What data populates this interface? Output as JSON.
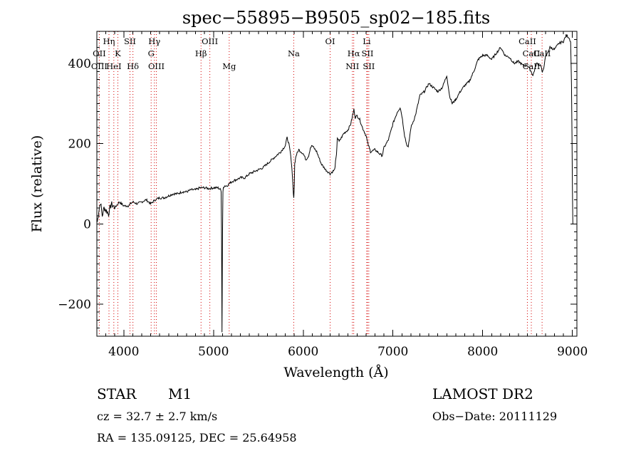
{
  "chart_data": {
    "type": "line",
    "title": "spec−55895−B9505_sp02−185.fits",
    "xlabel": "Wavelength (Å)",
    "ylabel": "Flux (relative)",
    "xlim": [
      3700,
      9050
    ],
    "ylim": [
      -280,
      480
    ],
    "x_ticks": [
      4000,
      5000,
      6000,
      7000,
      8000,
      9000
    ],
    "y_ticks": [
      -200,
      0,
      200,
      400
    ],
    "x_tick_labels": [
      "4000",
      "5000",
      "6000",
      "7000",
      "8000",
      "9000"
    ],
    "y_tick_labels": [
      "−200",
      "0",
      "200",
      "400"
    ],
    "series": [
      {
        "x": [
          3705,
          3720,
          3740,
          3760,
          3780,
          3800,
          3830,
          3860,
          3900,
          3950,
          4000,
          4050,
          4100,
          4150,
          4200,
          4250,
          4300,
          4350,
          4400,
          4450,
          4500,
          4550,
          4600,
          4650,
          4700,
          4750,
          4800,
          4850,
          4900,
          4950,
          5000,
          5050,
          5080,
          5085,
          5090,
          5095,
          5100,
          5105,
          5110,
          5120,
          5150,
          5200,
          5250,
          5300,
          5350,
          5400,
          5450,
          5500,
          5550,
          5600,
          5650,
          5700,
          5750,
          5800,
          5820,
          5840,
          5860,
          5880,
          5890,
          5895,
          5900,
          5905,
          5920,
          5950,
          6000,
          6030,
          6060,
          6080,
          6100,
          6150,
          6200,
          6250,
          6300,
          6350,
          6360,
          6370,
          6380,
          6400,
          6450,
          6500,
          6530,
          6550,
          6565,
          6580,
          6600,
          6630,
          6660,
          6700,
          6720,
          6750,
          6800,
          6850,
          6880,
          6900,
          6950,
          7000,
          7050,
          7080,
          7100,
          7130,
          7150,
          7170,
          7200,
          7250,
          7300,
          7350,
          7400,
          7450,
          7500,
          7550,
          7600,
          7630,
          7660,
          7700,
          7750,
          7800,
          7850,
          7900,
          7950,
          8000,
          8050,
          8100,
          8150,
          8200,
          8250,
          8300,
          8350,
          8400,
          8450,
          8500,
          8540,
          8560,
          8600,
          8650,
          8665,
          8680,
          8700,
          8750,
          8800,
          8850,
          8900,
          8930,
          8960,
          8980,
          8990,
          9000,
          9005
        ],
        "y": [
          5,
          30,
          55,
          20,
          40,
          35,
          25,
          50,
          40,
          55,
          45,
          45,
          55,
          50,
          55,
          60,
          50,
          60,
          65,
          65,
          70,
          75,
          75,
          80,
          80,
          85,
          85,
          90,
          90,
          88,
          90,
          90,
          85,
          80,
          -30,
          -270,
          -30,
          80,
          90,
          95,
          95,
          105,
          110,
          115,
          115,
          125,
          130,
          135,
          140,
          150,
          160,
          170,
          180,
          195,
          215,
          200,
          170,
          120,
          75,
          65,
          95,
          150,
          170,
          185,
          175,
          160,
          170,
          190,
          195,
          180,
          150,
          135,
          125,
          135,
          155,
          170,
          215,
          205,
          225,
          235,
          250,
          270,
          285,
          265,
          270,
          260,
          240,
          220,
          200,
          180,
          185,
          175,
          170,
          190,
          210,
          250,
          280,
          290,
          270,
          220,
          200,
          190,
          240,
          270,
          320,
          330,
          350,
          340,
          330,
          340,
          370,
          320,
          300,
          310,
          330,
          345,
          355,
          380,
          410,
          420,
          420,
          410,
          425,
          440,
          420,
          415,
          400,
          405,
          395,
          395,
          380,
          370,
          400,
          395,
          375,
          390,
          415,
          440,
          435,
          450,
          455,
          470,
          465,
          455,
          350,
          90,
          0
        ]
      }
    ],
    "line_ids": [
      {
        "label": "Hη",
        "wavelength": 3835,
        "row": 1
      },
      {
        "label": "OII",
        "wavelength": 3727,
        "row": 2
      },
      {
        "label": "OIII",
        "wavelength": 3727,
        "row": 3
      },
      {
        "label": "K",
        "wavelength": 3934,
        "row": 2
      },
      {
        "label": "HeI",
        "wavelength": 3889,
        "row": 3
      },
      {
        "label": "SII",
        "wavelength": 4069,
        "row": 1
      },
      {
        "label": "Hδ",
        "wavelength": 4102,
        "row": 3
      },
      {
        "label": "Hγ",
        "wavelength": 4341,
        "row": 1
      },
      {
        "label": "G",
        "wavelength": 4305,
        "row": 2
      },
      {
        "label": "OIII",
        "wavelength": 4363,
        "row": 3
      },
      {
        "label": "OIII",
        "wavelength": 4959,
        "row": 1
      },
      {
        "label": "Hβ",
        "wavelength": 4861,
        "row": 2
      },
      {
        "label": "Mg",
        "wavelength": 5175,
        "row": 3
      },
      {
        "label": "Na",
        "wavelength": 5894,
        "row": 2
      },
      {
        "label": "OI",
        "wavelength": 6300,
        "row": 1
      },
      {
        "label": "Hα",
        "wavelength": 6563,
        "row": 2
      },
      {
        "label": "NII",
        "wavelength": 6548,
        "row": 3
      },
      {
        "label": "Li",
        "wavelength": 6708,
        "row": 1
      },
      {
        "label": "SII",
        "wavelength": 6716,
        "row": 2
      },
      {
        "label": "SII",
        "wavelength": 6731,
        "row": 3
      },
      {
        "label": "CaII",
        "wavelength": 8498,
        "row": 1
      },
      {
        "label": "CaII",
        "wavelength": 8542,
        "row": 2
      },
      {
        "label": "CaII",
        "wavelength": 8662,
        "row": 2
      },
      {
        "label": "CaII",
        "wavelength": 8542,
        "row": 3
      }
    ],
    "guide_wavelengths": [
      3727,
      3835,
      3889,
      3934,
      4069,
      4102,
      4305,
      4341,
      4363,
      4861,
      4959,
      5175,
      5894,
      6300,
      6548,
      6563,
      6708,
      6716,
      6731,
      8498,
      8542,
      8662
    ],
    "guide_color": "#d40000",
    "line_color": "#000000"
  },
  "info": {
    "class": "STAR",
    "subclass": "M1",
    "cz": "cz = 32.7 ± 2.7 km/s",
    "radec": "RA = 135.09125, DEC =  25.64958",
    "survey": "LAMOST DR2",
    "obsdate": "Obs−Date: 20111129"
  }
}
